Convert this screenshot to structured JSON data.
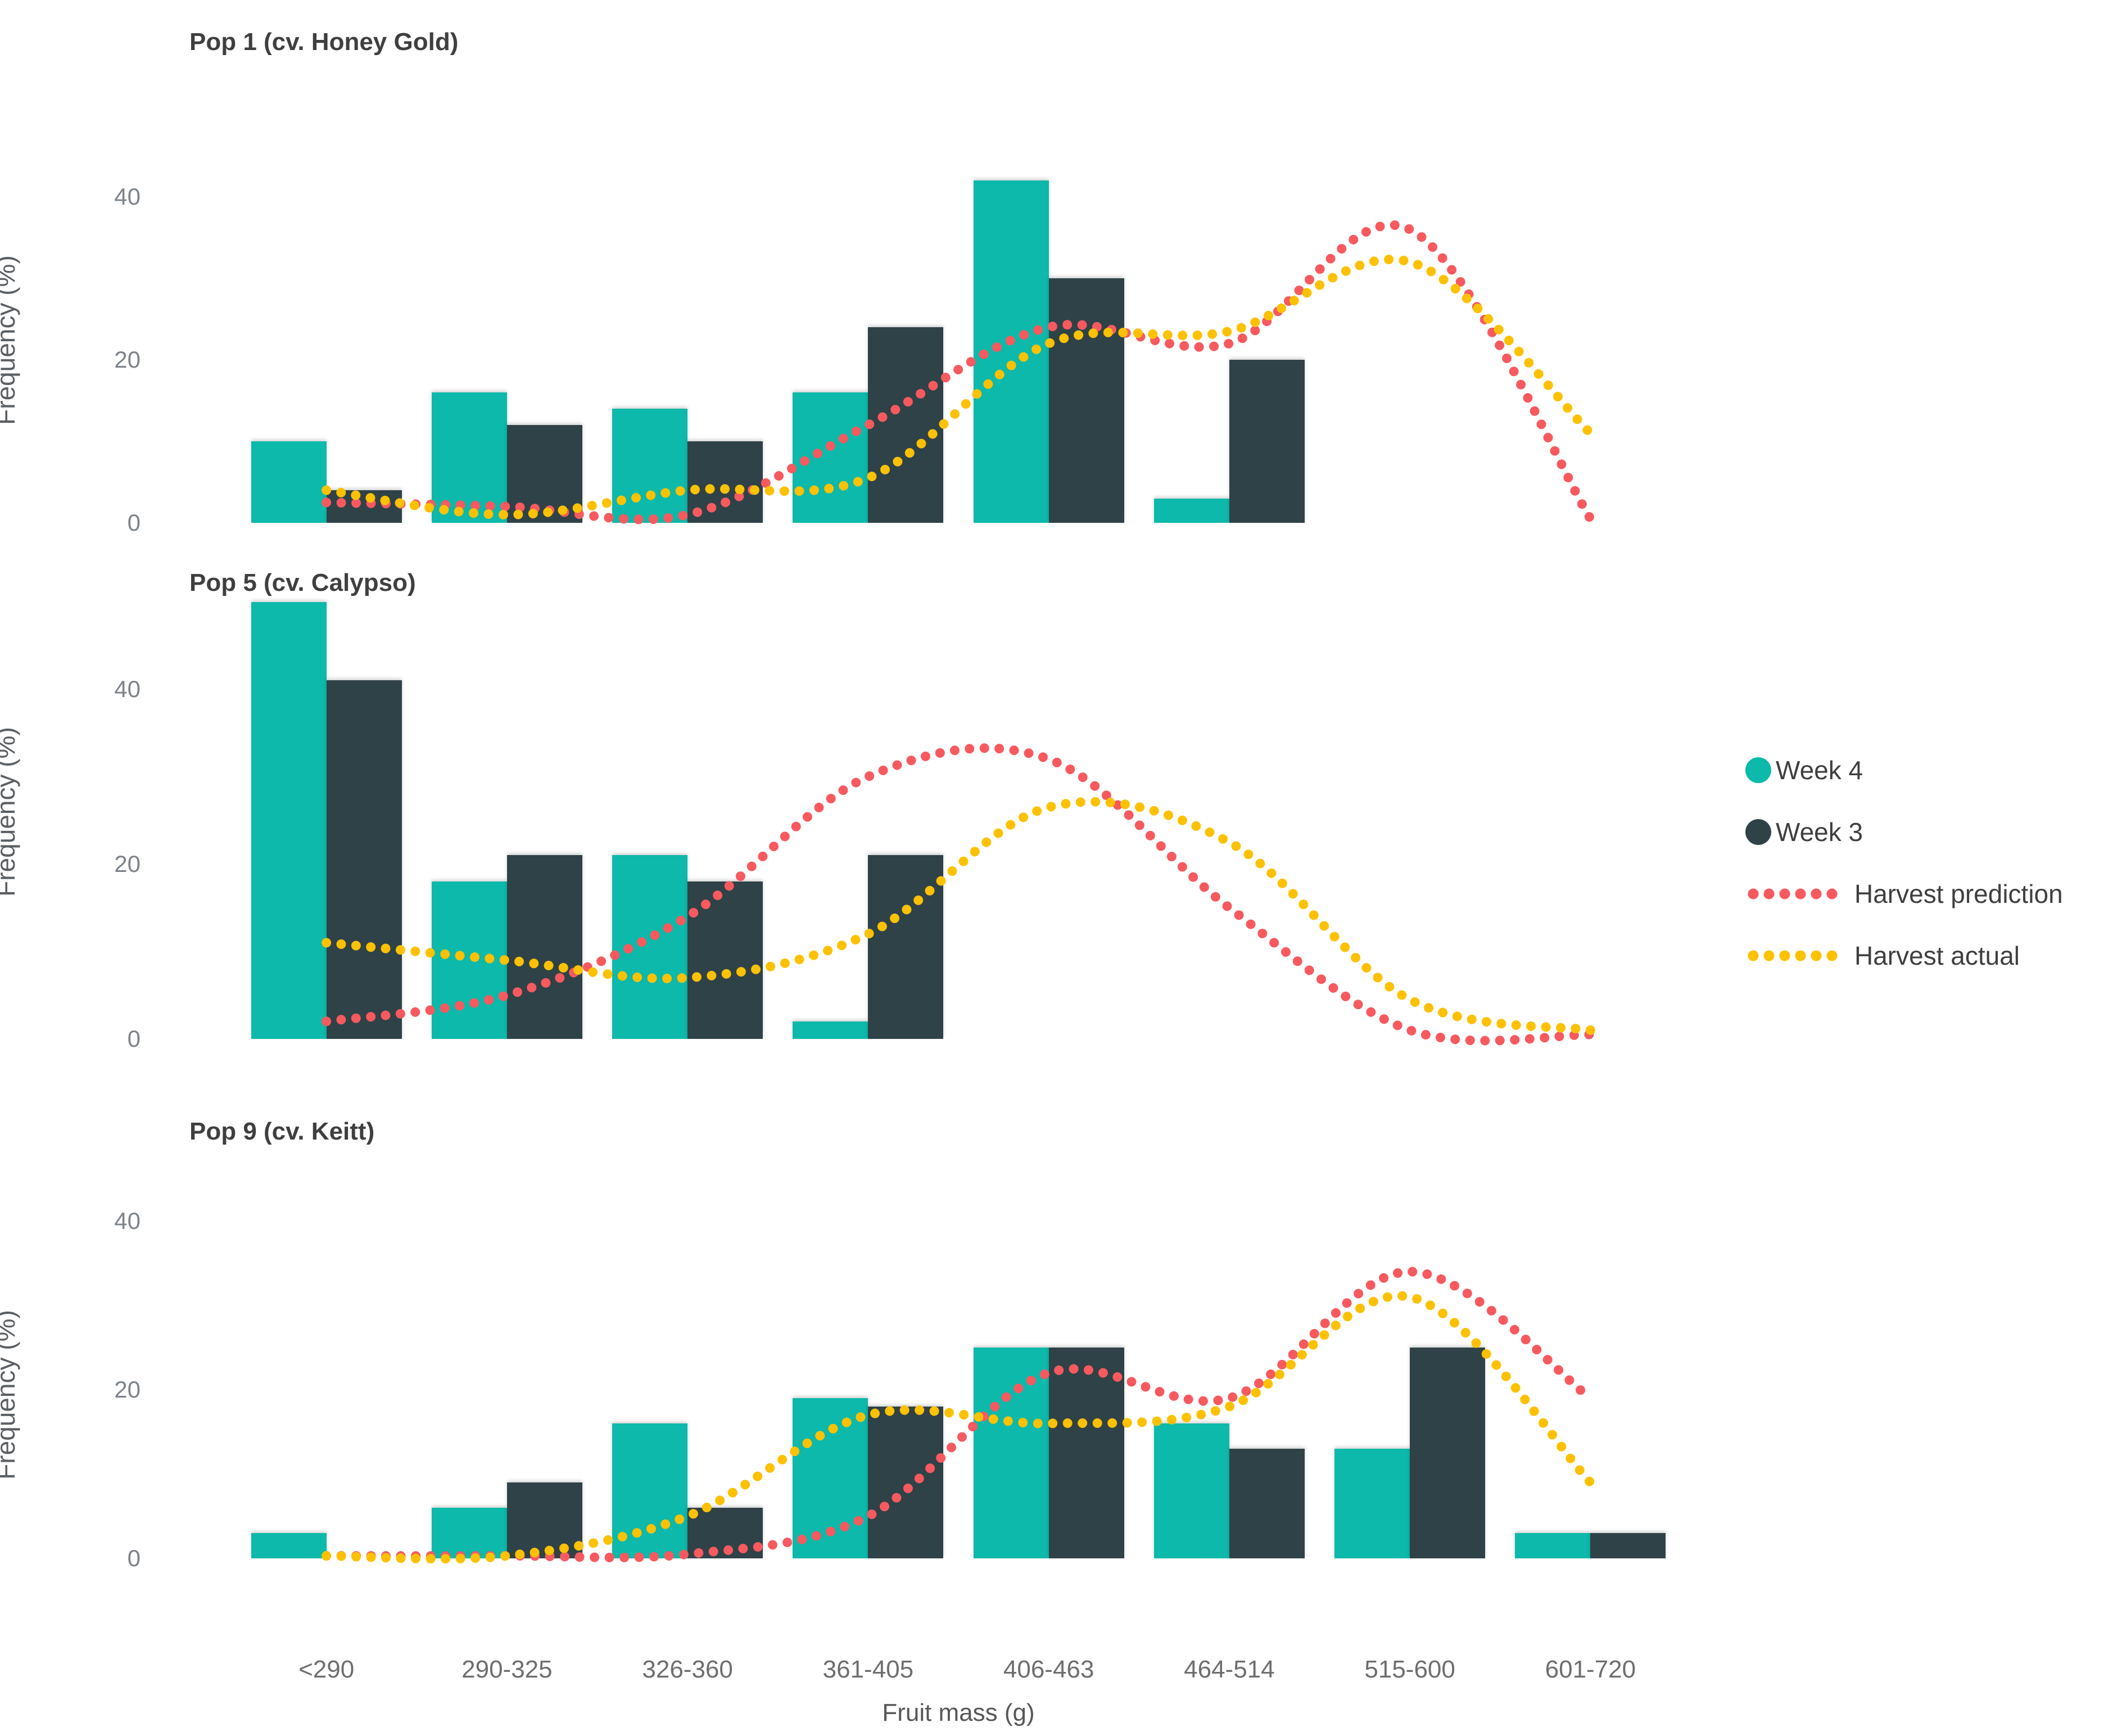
{
  "figure": {
    "x_axis": {
      "title": "Fruit mass (g)",
      "categories": [
        "<290",
        "290-325",
        "326-360",
        "361-405",
        "406-463",
        "464-514",
        "515-600",
        "601-720"
      ]
    },
    "y_axis": {
      "title": "Frequency (%)",
      "ticks": [
        "0",
        "20",
        "40"
      ]
    },
    "legend": [
      {
        "label": "Week 4",
        "marker": "circle",
        "color": "#0cb9aa"
      },
      {
        "label": "Week 3",
        "marker": "circle",
        "color": "#2f4247"
      },
      {
        "label": "Harvest prediction",
        "marker": "dotted-line",
        "color": "#f65a5f"
      },
      {
        "label": "Harvest actual",
        "marker": "dotted-line",
        "color": "#fdc103"
      }
    ],
    "colors": {
      "week4": "#0cb9aa",
      "week3": "#2f4247",
      "harvest_prediction": "#f65a5f",
      "harvest_actual": "#fdc103"
    }
  },
  "chart_data": [
    {
      "type": "bar",
      "title": "Pop 1 (cv. Honey Gold)",
      "categories": [
        "<290",
        "290-325",
        "326-360",
        "361-405",
        "406-463",
        "464-514",
        "515-600",
        "601-720"
      ],
      "xlabel": "Fruit mass (g)",
      "ylabel": "Frequency (%)",
      "ylim": [
        0,
        44.8
      ],
      "grid": false,
      "series": [
        {
          "name": "Week 4",
          "type": "bar",
          "color": "#0cb9aa",
          "values": [
            10,
            16,
            14,
            16,
            42,
            3,
            0,
            0
          ]
        },
        {
          "name": "Week 3",
          "type": "bar",
          "color": "#2f4247",
          "values": [
            4,
            12,
            10,
            24,
            30,
            20,
            0,
            0
          ]
        },
        {
          "name": "Harvest prediction",
          "type": "dotted-line",
          "color": "#f65a5f",
          "values": [
            2.5,
            2,
            1,
            12,
            24,
            22,
            36,
            0.5
          ]
        },
        {
          "name": "Harvest actual",
          "type": "dotted-line",
          "color": "#fdc103",
          "values": [
            4,
            1,
            4,
            5.5,
            22,
            23.5,
            32,
            11
          ]
        }
      ]
    },
    {
      "type": "bar",
      "title": "Pop 5 (cv. Calypso)",
      "categories": [
        "<290",
        "290-325",
        "326-360",
        "361-405",
        "406-463",
        "464-514",
        "515-600",
        "601-720"
      ],
      "xlabel": "Fruit mass (g)",
      "ylabel": "Frequency (%)",
      "ylim": [
        0,
        52
      ],
      "grid": false,
      "series": [
        {
          "name": "Week 4",
          "type": "bar",
          "color": "#0cb9aa",
          "values": [
            50,
            18,
            21,
            2,
            0,
            0,
            0,
            0
          ]
        },
        {
          "name": "Week 3",
          "type": "bar",
          "color": "#2f4247",
          "values": [
            41,
            21,
            18,
            21,
            0,
            0,
            0,
            0
          ]
        },
        {
          "name": "Harvest prediction",
          "type": "dotted-line",
          "color": "#f65a5f",
          "values": [
            2,
            5,
            14,
            30,
            32,
            15,
            1,
            0.5
          ]
        },
        {
          "name": "Harvest actual",
          "type": "dotted-line",
          "color": "#fdc103",
          "values": [
            11,
            9,
            7,
            12,
            26.5,
            22.5,
            4.5,
            1
          ]
        }
      ]
    },
    {
      "type": "bar",
      "title": "Pop 9 (cv. Keitt)",
      "categories": [
        "<290",
        "290-325",
        "326-360",
        "361-405",
        "406-463",
        "464-514",
        "515-600",
        "601-720"
      ],
      "xlabel": "Fruit mass (g)",
      "ylabel": "Frequency (%)",
      "ylim": [
        0,
        38.8
      ],
      "grid": false,
      "series": [
        {
          "name": "Week 4",
          "type": "bar",
          "color": "#0cb9aa",
          "values": [
            3,
            6,
            16,
            19,
            25,
            16,
            13,
            3
          ]
        },
        {
          "name": "Week 3",
          "type": "bar",
          "color": "#2f4247",
          "values": [
            0,
            9,
            6,
            18,
            25,
            13,
            25,
            3
          ]
        },
        {
          "name": "Harvest prediction",
          "type": "dotted-line",
          "color": "#f65a5f",
          "values": [
            0.3,
            0.3,
            0.5,
            5,
            22,
            19,
            34,
            19
          ]
        },
        {
          "name": "Harvest actual",
          "type": "dotted-line",
          "color": "#fdc103",
          "values": [
            0.3,
            0.3,
            5,
            17,
            16,
            18,
            31,
            9
          ]
        }
      ]
    }
  ]
}
